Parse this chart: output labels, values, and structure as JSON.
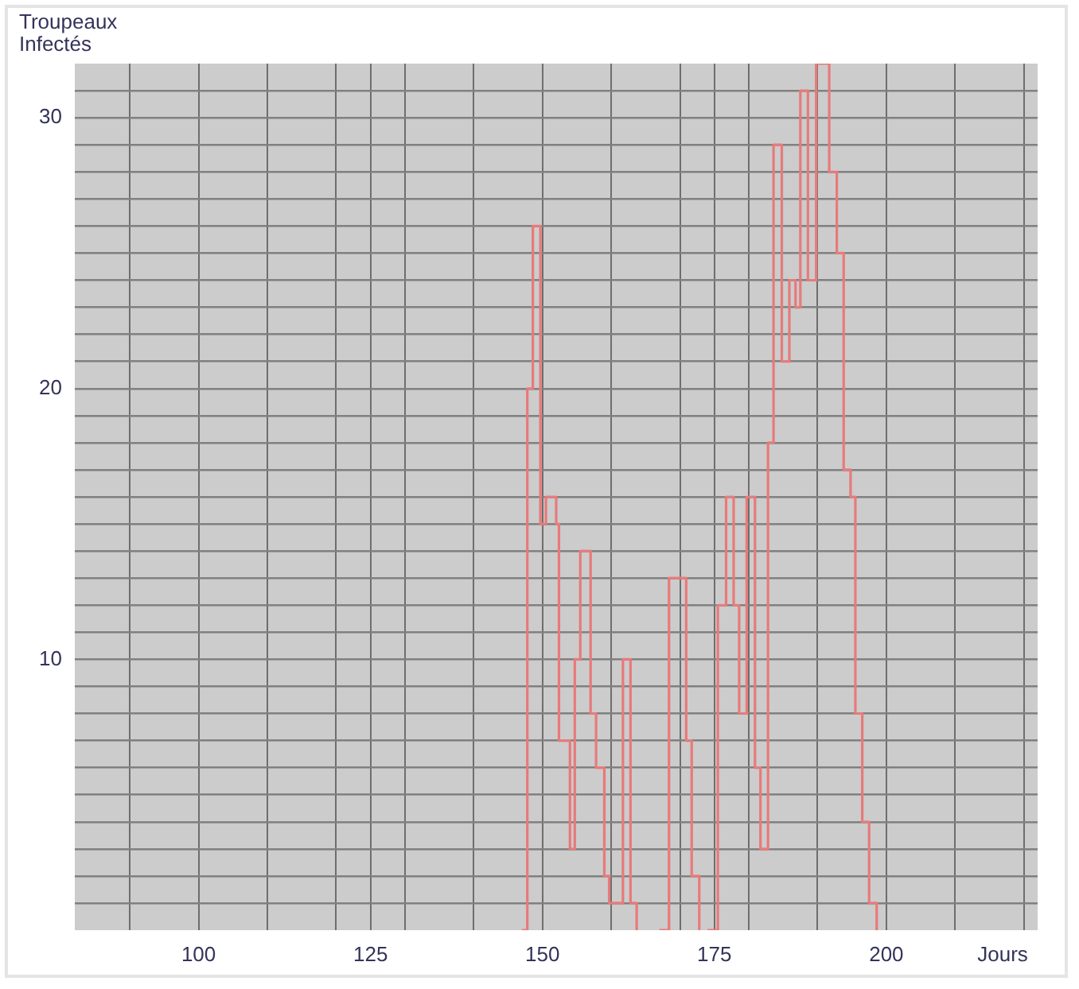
{
  "chart_data": {
    "type": "step",
    "xlabel": "Jours",
    "ylabel": "Troupeaux Infectés",
    "xlim": [
      82,
      222
    ],
    "ylim": [
      0,
      32
    ],
    "xticks": [
      {
        "value": 90,
        "label": null
      },
      100,
      {
        "value": 110,
        "label": null
      },
      {
        "value": 120,
        "label": null
      },
      125,
      {
        "value": 130,
        "label": null
      },
      {
        "value": 140,
        "label": null
      },
      150,
      {
        "value": 160,
        "label": null
      },
      {
        "value": 170,
        "label": null
      },
      175,
      {
        "value": 180,
        "label": null
      },
      {
        "value": 190,
        "label": null
      },
      200,
      {
        "value": 210,
        "label": null
      },
      {
        "value": 220,
        "label": null
      }
    ],
    "yticks": [
      {
        "value": 1,
        "label": null
      },
      {
        "value": 2,
        "label": null
      },
      {
        "value": 3,
        "label": null
      },
      {
        "value": 4,
        "label": null
      },
      {
        "value": 5,
        "label": null
      },
      {
        "value": 6,
        "label": null
      },
      {
        "value": 7,
        "label": null
      },
      {
        "value": 8,
        "label": null
      },
      {
        "value": 9,
        "label": null
      },
      10,
      {
        "value": 11,
        "label": null
      },
      {
        "value": 12,
        "label": null
      },
      {
        "value": 13,
        "label": null
      },
      {
        "value": 14,
        "label": null
      },
      {
        "value": 15,
        "label": null
      },
      {
        "value": 16,
        "label": null
      },
      {
        "value": 17,
        "label": null
      },
      {
        "value": 18,
        "label": null
      },
      {
        "value": 19,
        "label": null
      },
      20,
      {
        "value": 21,
        "label": null
      },
      {
        "value": 22,
        "label": null
      },
      {
        "value": 23,
        "label": null
      },
      {
        "value": 24,
        "label": null
      },
      {
        "value": 25,
        "label": null
      },
      {
        "value": 26,
        "label": null
      },
      {
        "value": 27,
        "label": null
      },
      {
        "value": 28,
        "label": null
      },
      {
        "value": 29,
        "label": null
      },
      30,
      {
        "value": 31,
        "label": null
      }
    ],
    "grid": true,
    "marker": "none",
    "line_style": "solid",
    "series": [
      {
        "color": "#e87a7a",
        "x": [
          147,
          147.8,
          148.6,
          149.7,
          150.5,
          152,
          152.4,
          154,
          154.7,
          155.5,
          157,
          157.8,
          159,
          159.7,
          161.7,
          162.8,
          163.7
        ],
        "values": [
          0,
          20,
          26,
          15,
          16,
          15,
          7,
          3,
          10,
          14,
          8,
          6,
          2,
          1,
          10,
          1,
          0
        ]
      },
      {
        "color": "#e87a7a",
        "x": [
          167,
          168.4,
          170.9,
          171.7,
          172.8
        ],
        "values": [
          0,
          13,
          7,
          2,
          0
        ]
      },
      {
        "color": "#e87a7a",
        "x": [
          174,
          175.5,
          176.7,
          177.8,
          178.6,
          179.7,
          180.9,
          181.7,
          182.8,
          183.6,
          184.8,
          185.9,
          186.8,
          187.5,
          188.6,
          189.8,
          191.7,
          192.8,
          193.8,
          194.8,
          195.5,
          196.5,
          197.5,
          198.6
        ],
        "values": [
          0,
          12,
          16,
          12,
          8,
          16,
          6,
          3,
          18,
          29,
          21,
          24,
          23,
          31,
          24,
          32,
          28,
          25,
          17,
          16,
          8,
          4,
          1,
          0
        ]
      }
    ]
  }
}
